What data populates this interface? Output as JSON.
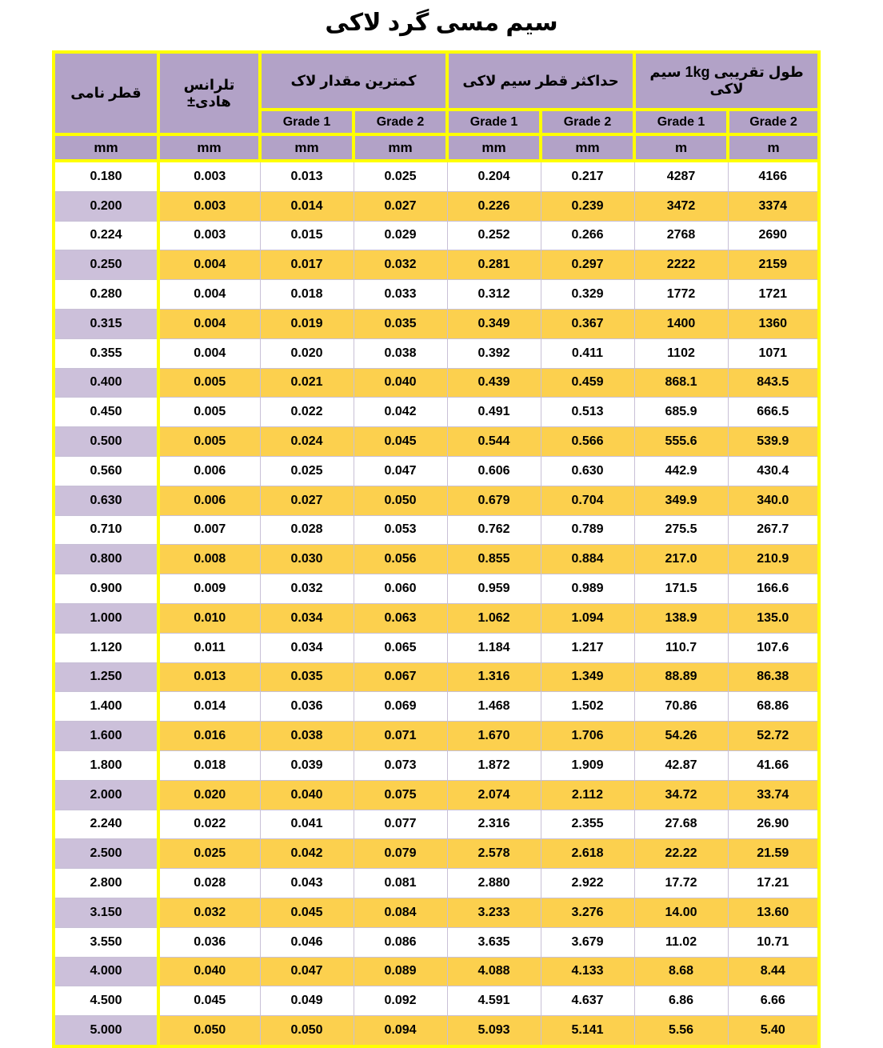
{
  "title": "سیم مسی گرد لاکی",
  "colors": {
    "header_bg": "#B2A2C7",
    "alt_row_bg": "#FCD04E",
    "alt_row_first_col_bg": "#CCC0DA",
    "accent_border": "#FFFF00",
    "grid_line": "#C8C0D6",
    "text": "#000000"
  },
  "table": {
    "top_headers": [
      {
        "label": "قطر نامی"
      },
      {
        "label": "تلرانس هادی±"
      },
      {
        "label": "کمترین مقدار لاک"
      },
      {
        "label": "حداکثر قطر سیم لاکی"
      },
      {
        "label": "طول تقریبی 1kg سیم لاکی"
      }
    ],
    "grade_row": [
      "Grade 1",
      "Grade 2",
      "Grade 1",
      "Grade 2",
      "Grade 1",
      "Grade 2"
    ],
    "unit_row": [
      "mm",
      "mm",
      "mm",
      "mm",
      "mm",
      "mm",
      "m",
      "m"
    ],
    "rows": [
      [
        "0.180",
        "0.003",
        "0.013",
        "0.025",
        "0.204",
        "0.217",
        "4287",
        "4166"
      ],
      [
        "0.200",
        "0.003",
        "0.014",
        "0.027",
        "0.226",
        "0.239",
        "3472",
        "3374"
      ],
      [
        "0.224",
        "0.003",
        "0.015",
        "0.029",
        "0.252",
        "0.266",
        "2768",
        "2690"
      ],
      [
        "0.250",
        "0.004",
        "0.017",
        "0.032",
        "0.281",
        "0.297",
        "2222",
        "2159"
      ],
      [
        "0.280",
        "0.004",
        "0.018",
        "0.033",
        "0.312",
        "0.329",
        "1772",
        "1721"
      ],
      [
        "0.315",
        "0.004",
        "0.019",
        "0.035",
        "0.349",
        "0.367",
        "1400",
        "1360"
      ],
      [
        "0.355",
        "0.004",
        "0.020",
        "0.038",
        "0.392",
        "0.411",
        "1102",
        "1071"
      ],
      [
        "0.400",
        "0.005",
        "0.021",
        "0.040",
        "0.439",
        "0.459",
        "868.1",
        "843.5"
      ],
      [
        "0.450",
        "0.005",
        "0.022",
        "0.042",
        "0.491",
        "0.513",
        "685.9",
        "666.5"
      ],
      [
        "0.500",
        "0.005",
        "0.024",
        "0.045",
        "0.544",
        "0.566",
        "555.6",
        "539.9"
      ],
      [
        "0.560",
        "0.006",
        "0.025",
        "0.047",
        "0.606",
        "0.630",
        "442.9",
        "430.4"
      ],
      [
        "0.630",
        "0.006",
        "0.027",
        "0.050",
        "0.679",
        "0.704",
        "349.9",
        "340.0"
      ],
      [
        "0.710",
        "0.007",
        "0.028",
        "0.053",
        "0.762",
        "0.789",
        "275.5",
        "267.7"
      ],
      [
        "0.800",
        "0.008",
        "0.030",
        "0.056",
        "0.855",
        "0.884",
        "217.0",
        "210.9"
      ],
      [
        "0.900",
        "0.009",
        "0.032",
        "0.060",
        "0.959",
        "0.989",
        "171.5",
        "166.6"
      ],
      [
        "1.000",
        "0.010",
        "0.034",
        "0.063",
        "1.062",
        "1.094",
        "138.9",
        "135.0"
      ],
      [
        "1.120",
        "0.011",
        "0.034",
        "0.065",
        "1.184",
        "1.217",
        "110.7",
        "107.6"
      ],
      [
        "1.250",
        "0.013",
        "0.035",
        "0.067",
        "1.316",
        "1.349",
        "88.89",
        "86.38"
      ],
      [
        "1.400",
        "0.014",
        "0.036",
        "0.069",
        "1.468",
        "1.502",
        "70.86",
        "68.86"
      ],
      [
        "1.600",
        "0.016",
        "0.038",
        "0.071",
        "1.670",
        "1.706",
        "54.26",
        "52.72"
      ],
      [
        "1.800",
        "0.018",
        "0.039",
        "0.073",
        "1.872",
        "1.909",
        "42.87",
        "41.66"
      ],
      [
        "2.000",
        "0.020",
        "0.040",
        "0.075",
        "2.074",
        "2.112",
        "34.72",
        "33.74"
      ],
      [
        "2.240",
        "0.022",
        "0.041",
        "0.077",
        "2.316",
        "2.355",
        "27.68",
        "26.90"
      ],
      [
        "2.500",
        "0.025",
        "0.042",
        "0.079",
        "2.578",
        "2.618",
        "22.22",
        "21.59"
      ],
      [
        "2.800",
        "0.028",
        "0.043",
        "0.081",
        "2.880",
        "2.922",
        "17.72",
        "17.21"
      ],
      [
        "3.150",
        "0.032",
        "0.045",
        "0.084",
        "3.233",
        "3.276",
        "14.00",
        "13.60"
      ],
      [
        "3.550",
        "0.036",
        "0.046",
        "0.086",
        "3.635",
        "3.679",
        "11.02",
        "10.71"
      ],
      [
        "4.000",
        "0.040",
        "0.047",
        "0.089",
        "4.088",
        "4.133",
        "8.68",
        "8.44"
      ],
      [
        "4.500",
        "0.045",
        "0.049",
        "0.092",
        "4.591",
        "4.637",
        "6.86",
        "6.66"
      ],
      [
        "5.000",
        "0.050",
        "0.050",
        "0.094",
        "5.093",
        "5.141",
        "5.56",
        "5.40"
      ]
    ]
  }
}
